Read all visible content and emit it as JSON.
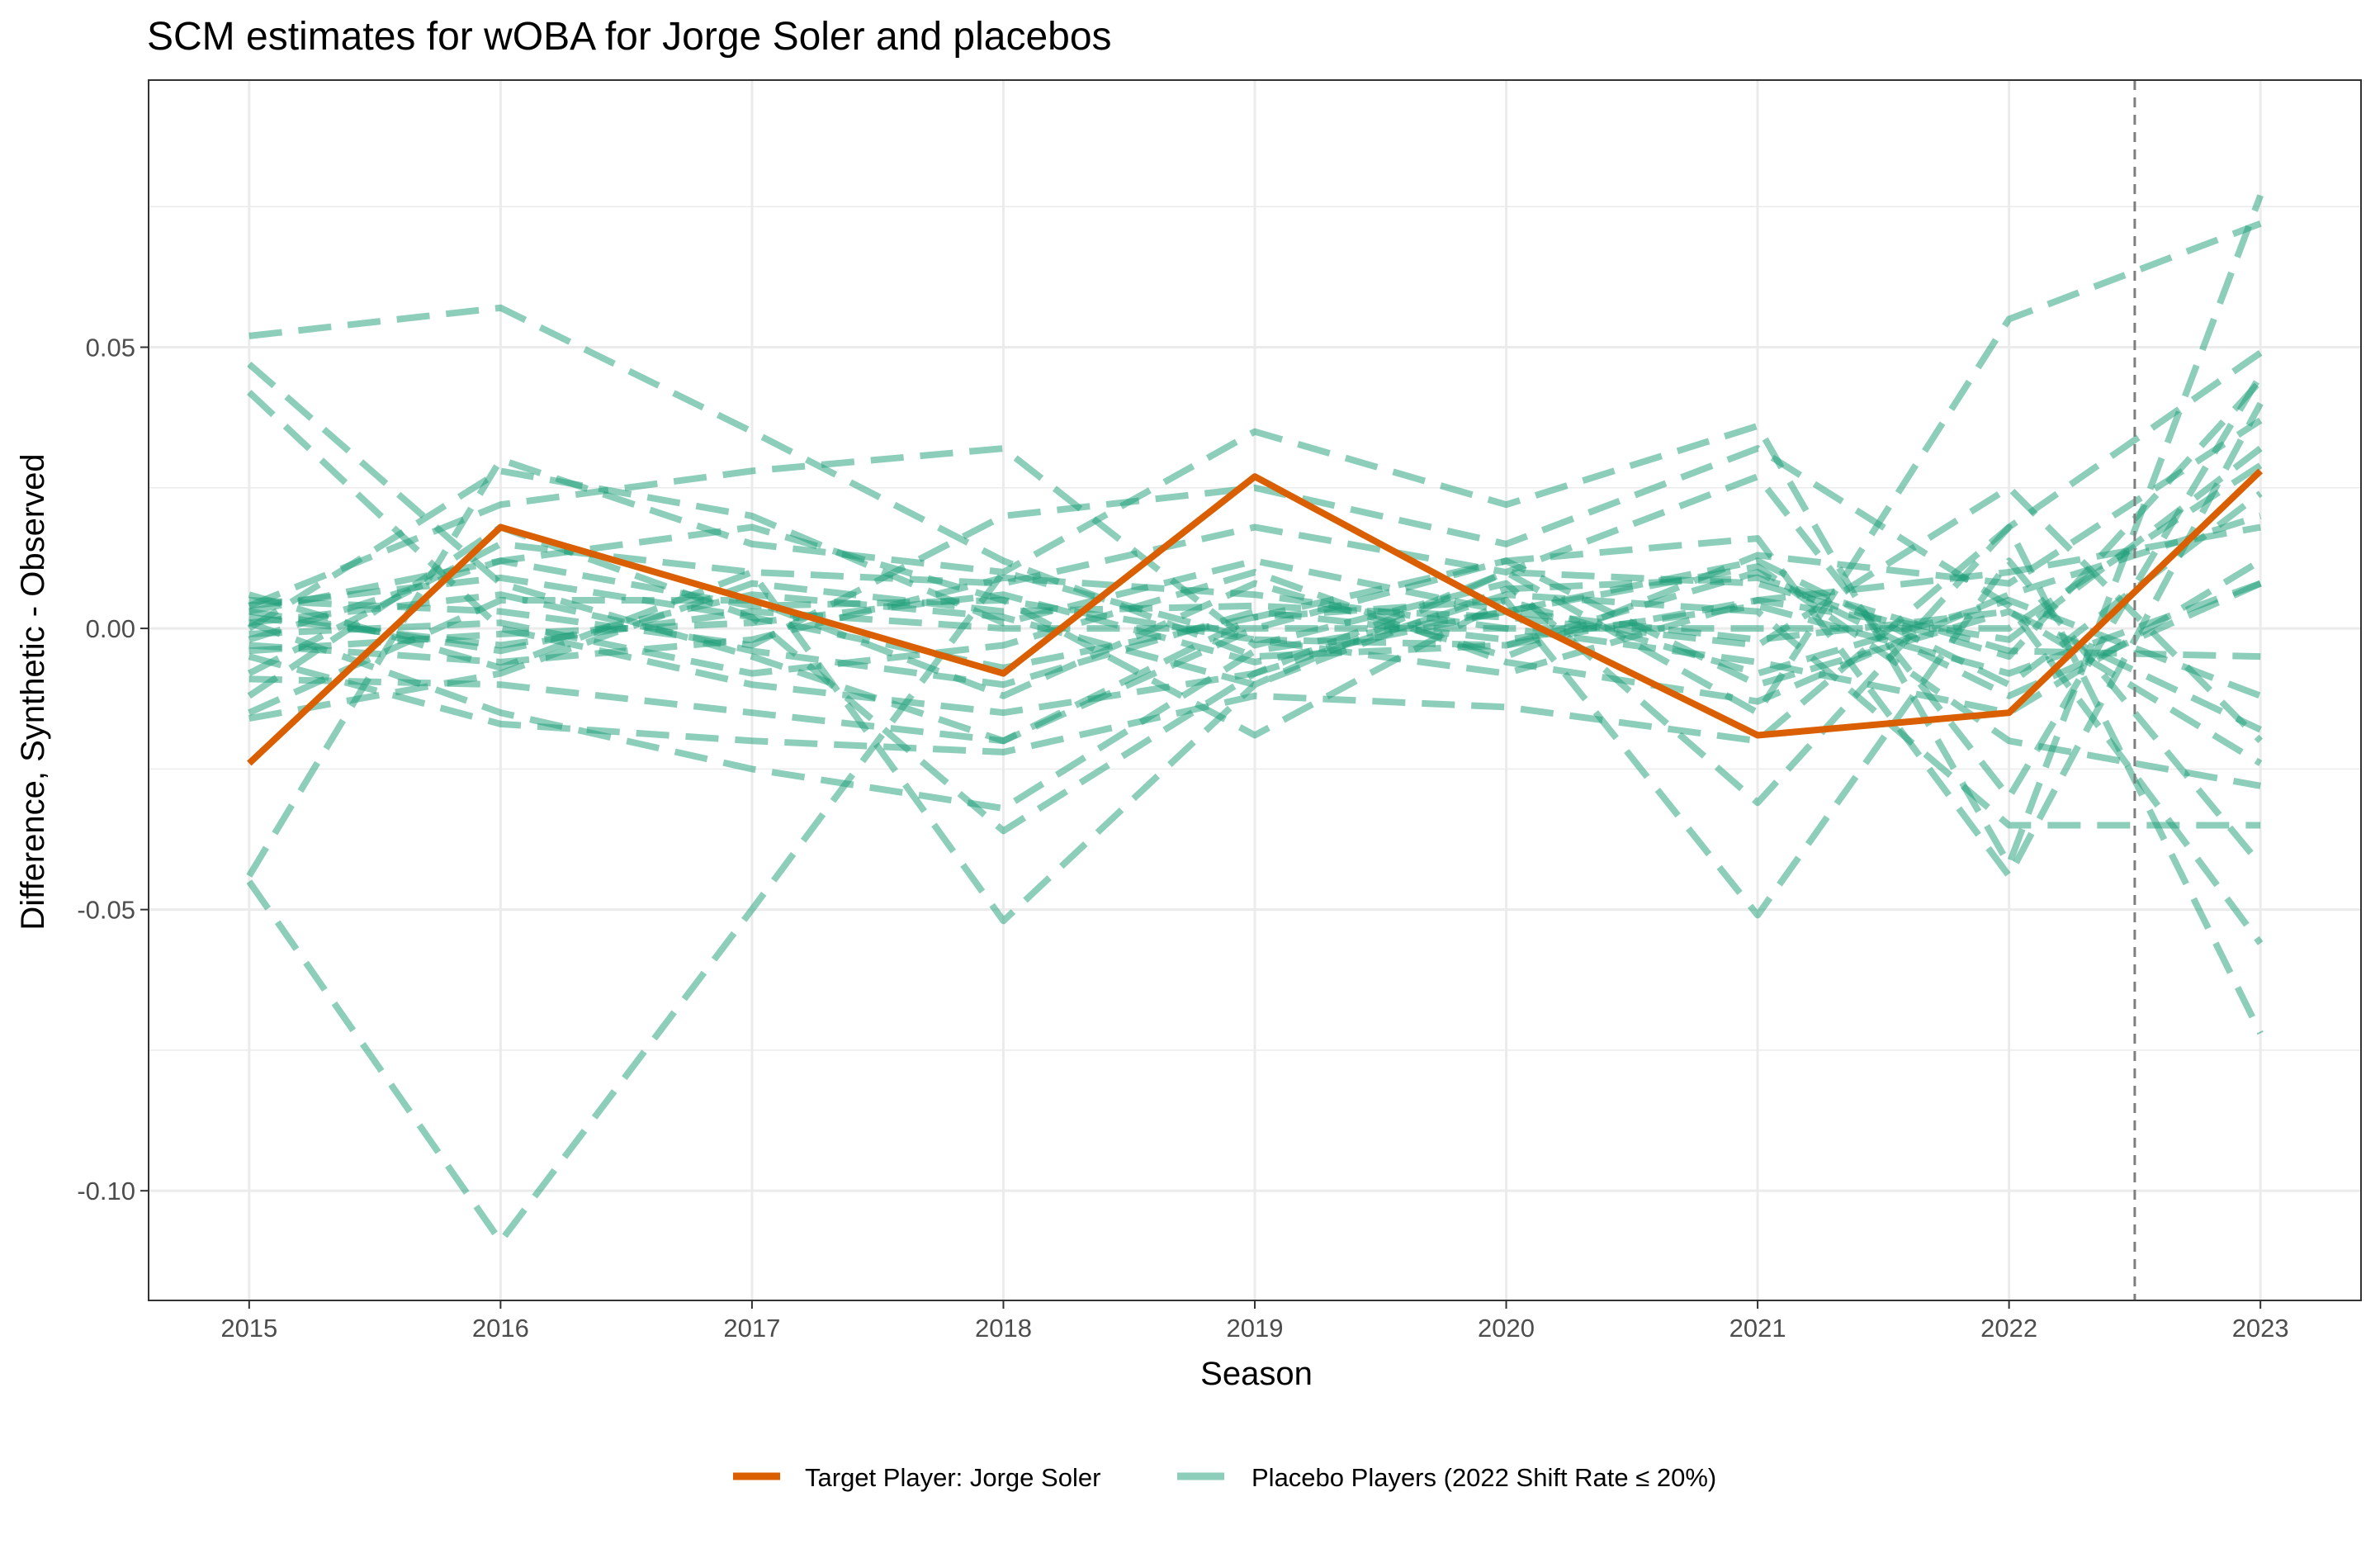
{
  "chart_data": {
    "type": "line",
    "title": "SCM estimates for wOBA for Jorge Soler and placebos",
    "xlabel": "Season",
    "ylabel": "Difference, Synthetic - Observed",
    "x": [
      2015,
      2016,
      2017,
      2018,
      2019,
      2020,
      2021,
      2022,
      2023
    ],
    "x_tick_labels": [
      "2015",
      "2016",
      "2017",
      "2018",
      "2019",
      "2020",
      "2021",
      "2022",
      "2023"
    ],
    "xlim": [
      2014.6,
      2023.4
    ],
    "ylim": [
      -0.1195,
      0.0975
    ],
    "y_ticks": [
      0.05,
      0.0,
      -0.05,
      -0.1
    ],
    "y_tick_labels": [
      "0.05",
      "0.00",
      "-0.05",
      "-0.10"
    ],
    "grid": true,
    "reference_line": {
      "x": 2022.5,
      "style": "dashed",
      "color": "#7f7f7f"
    },
    "legend_position": "bottom",
    "legend": [
      {
        "label": "Target Player: Jorge Soler",
        "color": "#d95f02",
        "style": "solid"
      },
      {
        "label": "Placebo Players (2022 Shift Rate ≤ 20%)",
        "color": "#1b9e77",
        "style": "dashed"
      }
    ],
    "target_series": {
      "color": "#d95f02",
      "values": [
        -0.024,
        0.018,
        0.005,
        -0.008,
        0.027,
        0.003,
        -0.019,
        -0.015,
        0.028
      ]
    },
    "placebo_series": {
      "color": "#1b9e77",
      "opacity": 0.5,
      "lines": [
        [
          0.052,
          0.057,
          0.035,
          0.012,
          -0.005,
          -0.003,
          0.005,
          -0.002,
          0.032
        ],
        [
          0.047,
          0.008,
          -0.005,
          -0.02,
          0.002,
          0.012,
          -0.01,
          0.003,
          -0.024
        ],
        [
          0.042,
          0.0,
          -0.01,
          -0.015,
          -0.008,
          0.01,
          0.008,
          -0.005,
          0.044
        ],
        [
          -0.045,
          -0.109,
          -0.05,
          0.01,
          -0.002,
          -0.003,
          0.01,
          -0.012,
          0.008
        ],
        [
          -0.044,
          0.03,
          0.015,
          0.01,
          0.035,
          0.022,
          0.036,
          -0.042,
          0.077
        ],
        [
          0.006,
          -0.007,
          0.01,
          -0.052,
          -0.01,
          0.01,
          -0.015,
          0.055,
          0.072
        ],
        [
          0.005,
          0.003,
          -0.003,
          0.02,
          0.025,
          0.015,
          0.032,
          0.004,
          -0.056
        ],
        [
          0.004,
          0.022,
          0.028,
          0.032,
          -0.003,
          0.008,
          -0.031,
          0.018,
          -0.072
        ],
        [
          0.003,
          0.012,
          0.018,
          0.005,
          -0.019,
          0.005,
          -0.051,
          0.012,
          -0.042
        ],
        [
          -0.005,
          -0.017,
          -0.02,
          -0.022,
          -0.012,
          -0.014,
          -0.02,
          0.018,
          0.049
        ],
        [
          -0.008,
          0.015,
          0.01,
          0.008,
          0.018,
          0.01,
          0.027,
          -0.03,
          0.045
        ],
        [
          -0.009,
          -0.01,
          -0.015,
          -0.02,
          0.0,
          0.012,
          0.016,
          -0.044,
          0.04
        ],
        [
          -0.012,
          0.018,
          0.002,
          -0.036,
          -0.008,
          0.006,
          0.003,
          -0.035,
          -0.035
        ],
        [
          -0.015,
          0.005,
          0.005,
          -0.012,
          0.008,
          -0.005,
          0.013,
          0.008,
          0.037
        ],
        [
          -0.016,
          -0.008,
          0.008,
          0.003,
          0.004,
          0.002,
          -0.003,
          0.025,
          -0.02
        ],
        [
          0.002,
          -0.003,
          0.003,
          0.0,
          0.0,
          0.0,
          0.0,
          0.0,
          0.029
        ],
        [
          0.001,
          -0.015,
          -0.025,
          -0.032,
          -0.004,
          0.003,
          0.012,
          -0.01,
          0.024
        ],
        [
          0.0,
          0.028,
          0.02,
          0.001,
          0.012,
          0.003,
          0.011,
          -0.02,
          -0.028
        ],
        [
          -0.002,
          0.012,
          0.004,
          0.005,
          -0.002,
          -0.008,
          0.005,
          0.01,
          0.018
        ],
        [
          -0.003,
          -0.006,
          -0.002,
          0.009,
          0.006,
          0.0,
          -0.006,
          -0.015,
          0.012
        ],
        [
          0.004,
          0.009,
          0.002,
          -0.007,
          0.002,
          0.005,
          -0.008,
          0.005,
          -0.012
        ],
        [
          -0.001,
          0.001,
          -0.008,
          -0.003,
          0.01,
          -0.006,
          -0.013,
          0.006,
          0.02
        ],
        [
          0.003,
          -0.004,
          0.006,
          0.002,
          -0.01,
          0.007,
          0.009,
          -0.004,
          -0.005
        ],
        [
          0.001,
          0.006,
          -0.004,
          -0.01,
          0.003,
          -0.002,
          0.004,
          -0.008,
          0.008
        ],
        [
          -0.004,
          -0.001,
          0.001,
          0.006,
          -0.006,
          0.003,
          -0.002,
          0.003,
          -0.018
        ]
      ]
    }
  }
}
